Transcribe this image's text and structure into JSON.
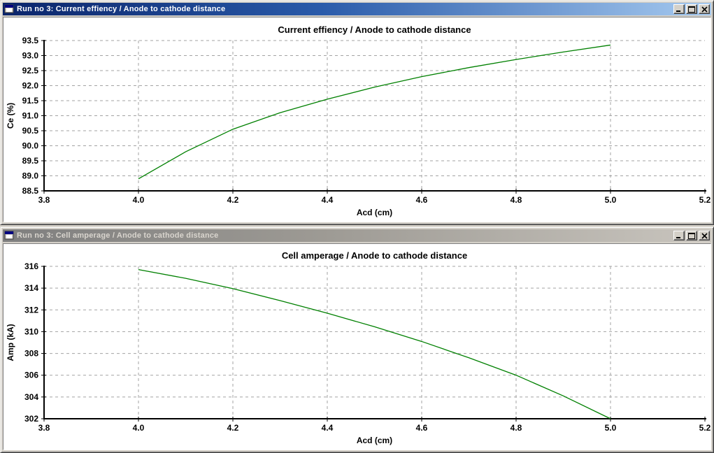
{
  "page": {
    "background": "#D4D0C8"
  },
  "colors": {
    "title_active_start": "#0A246A",
    "title_active_end": "#A6CAF0",
    "title_inactive_start": "#7F7F7F",
    "title_inactive_end": "#C9C5BE",
    "window_face": "#D4D0C8",
    "client_background": "#FFFFFF",
    "grid_line": "#A3A3A3",
    "axis_line": "#000000",
    "curve_green": "#008000",
    "chart_text": "#000000"
  },
  "windows": [
    {
      "title": "Run no 3: Current effiency / Anode to cathode distance",
      "state": "active",
      "window_buttons": [
        "minimize",
        "maximize",
        "close"
      ],
      "icon": "form-window-icon",
      "chart_data": {
        "type": "line",
        "title": "Current effiency / Anode to cathode distance",
        "xlabel": "Acd (cm)",
        "ylabel": "Ce (%)",
        "xlim": [
          3.8,
          5.2
        ],
        "ylim": [
          88.5,
          93.5
        ],
        "xtick_values": [
          3.8,
          4.0,
          4.2,
          4.4,
          4.6,
          4.8,
          5.0,
          5.2
        ],
        "xtick_labels": [
          "3.8",
          "4.0",
          "4.2",
          "4.4",
          "4.6",
          "4.8",
          "5.0",
          "5.2"
        ],
        "ytick_values": [
          88.5,
          89.0,
          89.5,
          90.0,
          90.5,
          91.0,
          91.5,
          92.0,
          92.5,
          93.0,
          93.5
        ],
        "ytick_labels": [
          "88.5",
          "89.0",
          "89.5",
          "90.0",
          "90.5",
          "91.0",
          "91.5",
          "92.0",
          "92.5",
          "93.0",
          "93.5"
        ],
        "grid": "dashed",
        "legend": "none",
        "line_color": "#008000",
        "series": [
          {
            "name": "Current efficiency",
            "x": [
              4.0,
              4.1,
              4.2,
              4.3,
              4.4,
              4.5,
              4.6,
              4.7,
              4.8,
              4.9,
              5.0
            ],
            "y": [
              88.9,
              89.8,
              90.55,
              91.1,
              91.55,
              91.95,
              92.3,
              92.6,
              92.87,
              93.12,
              93.35
            ]
          }
        ]
      }
    },
    {
      "title": "Run no 3: Cell amperage / Anode to cathode distance",
      "state": "inactive",
      "window_buttons": [
        "minimize",
        "maximize",
        "close"
      ],
      "icon": "form-window-icon",
      "chart_data": {
        "type": "line",
        "title": "Cell amperage / Anode to cathode distance",
        "xlabel": "Acd (cm)",
        "ylabel": "Amp (kA)",
        "xlim": [
          3.8,
          5.2
        ],
        "ylim": [
          302,
          316
        ],
        "xtick_values": [
          3.8,
          4.0,
          4.2,
          4.4,
          4.6,
          4.8,
          5.0,
          5.2
        ],
        "xtick_labels": [
          "3.8",
          "4.0",
          "4.2",
          "4.4",
          "4.6",
          "4.8",
          "5.0",
          "5.2"
        ],
        "ytick_values": [
          302,
          304,
          306,
          308,
          310,
          312,
          314,
          316
        ],
        "ytick_labels": [
          "302",
          "304",
          "306",
          "308",
          "310",
          "312",
          "314",
          "316"
        ],
        "grid": "dashed",
        "legend": "none",
        "line_color": "#008000",
        "series": [
          {
            "name": "Cell amperage",
            "x": [
              4.0,
              4.1,
              4.2,
              4.3,
              4.4,
              4.5,
              4.6,
              4.7,
              4.8,
              4.9,
              5.0
            ],
            "y": [
              315.7,
              314.9,
              313.95,
              312.85,
              311.7,
              310.45,
              309.1,
              307.6,
              306.0,
              304.1,
              302.0
            ]
          }
        ]
      }
    }
  ]
}
